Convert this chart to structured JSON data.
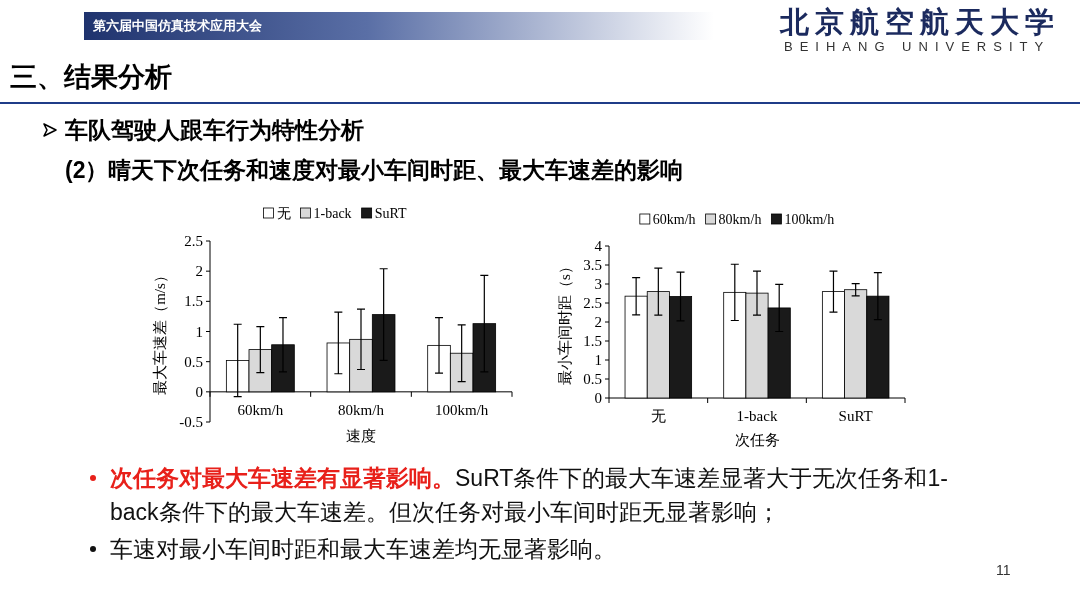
{
  "chart_data": [
    {
      "type": "other",
      "title": "三、结果分析",
      "subtitle": "车队驾驶人跟车行为特性分析",
      "annotations": [
        "(2）晴天下次任务和速度对最小车间时距、最大车速差的影响",
        "第六届中国仿真技术应用大会",
        "北京航空航天大学",
        "BEIHANG UNIVERSITY"
      ]
    },
    {
      "type": "bar",
      "categories": [
        "60km/h",
        "80km/h",
        "100km/h"
      ],
      "xlabel": "速度",
      "ylabel": "最大车速差（m/s）",
      "ylim": [
        -0.5,
        2.5
      ],
      "yticks": [
        -0.5,
        0,
        0.5,
        1,
        1.5,
        2,
        2.5
      ],
      "legend": "top",
      "series": [
        {
          "name": "无",
          "color": "#ffffff",
          "values": [
            0.52,
            0.81,
            0.77
          ],
          "errors": [
            0.6,
            0.51,
            0.46
          ]
        },
        {
          "name": "1-back",
          "color": "#d9d9d9",
          "values": [
            0.7,
            0.87,
            0.64
          ],
          "errors": [
            0.38,
            0.5,
            0.47
          ]
        },
        {
          "name": "SuRT",
          "color": "#1a1a1a",
          "values": [
            0.78,
            1.28,
            1.13
          ],
          "errors": [
            0.45,
            0.76,
            0.8
          ]
        }
      ]
    },
    {
      "type": "bar",
      "categories": [
        "无",
        "1-back",
        "SuRT"
      ],
      "xlabel": "次任务",
      "ylabel": "最小车间时距（s）",
      "ylim": [
        0,
        4
      ],
      "yticks": [
        0,
        0.5,
        1,
        1.5,
        2,
        2.5,
        3,
        3.5,
        4
      ],
      "legend": "top",
      "series": [
        {
          "name": "60km/h",
          "color": "#ffffff",
          "values": [
            2.68,
            2.78,
            2.8
          ],
          "errors": [
            0.49,
            0.74,
            0.54
          ]
        },
        {
          "name": "80km/h",
          "color": "#d9d9d9",
          "values": [
            2.8,
            2.76,
            2.85
          ],
          "errors": [
            0.62,
            0.58,
            0.16
          ]
        },
        {
          "name": "100km/h",
          "color": "#1a1a1a",
          "values": [
            2.67,
            2.37,
            2.68
          ],
          "errors": [
            0.64,
            0.62,
            0.62
          ]
        }
      ]
    },
    {
      "type": "other",
      "annotations": [
        "次任务对最大车速差有显著影响。SuRT条件下的最大车速差显著大于无次任务和1-back条件下的最大车速差。但次任务对最小车间时距无显著影响；",
        "车速对最小车间时距和最大车速差均无显著影响。",
        "11"
      ]
    }
  ]
}
